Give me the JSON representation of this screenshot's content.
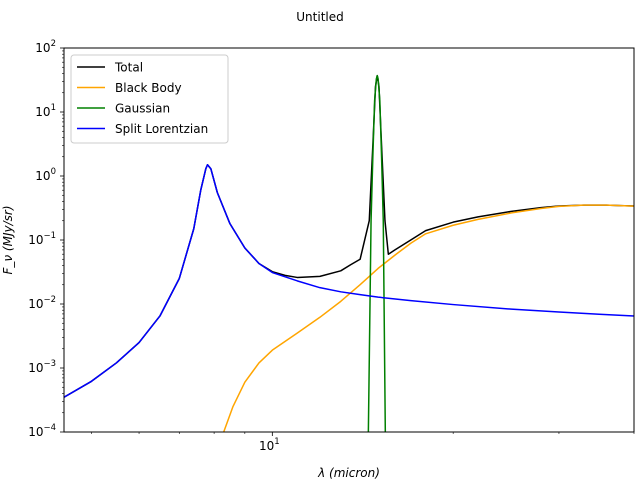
{
  "chart_data": {
    "type": "line",
    "title": "Untitled",
    "xlabel": "λ (micron)",
    "ylabel": "F_ν (MJy/sr)",
    "xscale": "log",
    "yscale": "log",
    "xlim": [
      4.5,
      40
    ],
    "ylim": [
      0.0001,
      100
    ],
    "x_ticks": [
      {
        "value": 10,
        "base": "10",
        "exp": "1"
      }
    ],
    "y_ticks": [
      {
        "value": 0.0001,
        "base": "10",
        "exp": "−4"
      },
      {
        "value": 0.001,
        "base": "10",
        "exp": "−3"
      },
      {
        "value": 0.01,
        "base": "10",
        "exp": "−2"
      },
      {
        "value": 0.1,
        "base": "10",
        "exp": "−1"
      },
      {
        "value": 1,
        "base": "10",
        "exp": "0"
      },
      {
        "value": 10,
        "base": "10",
        "exp": "1"
      },
      {
        "value": 100,
        "base": "10",
        "exp": "2"
      }
    ],
    "grid": false,
    "legend_position": "top-left",
    "series": [
      {
        "name": "Total",
        "color": "#000000",
        "points": [
          [
            4.5,
            0.00035
          ],
          [
            5,
            0.00062
          ],
          [
            5.5,
            0.0012
          ],
          [
            6,
            0.0025
          ],
          [
            6.5,
            0.0065
          ],
          [
            7,
            0.025
          ],
          [
            7.4,
            0.15
          ],
          [
            7.6,
            0.6
          ],
          [
            7.75,
            1.3
          ],
          [
            7.8,
            1.5
          ],
          [
            7.9,
            1.3
          ],
          [
            8.1,
            0.55
          ],
          [
            8.5,
            0.18
          ],
          [
            9,
            0.075
          ],
          [
            9.5,
            0.043
          ],
          [
            10,
            0.032
          ],
          [
            10.5,
            0.028
          ],
          [
            11,
            0.026
          ],
          [
            12,
            0.027
          ],
          [
            13,
            0.033
          ],
          [
            13.5,
            0.041
          ],
          [
            14,
            0.05
          ],
          [
            14.5,
            0.2
          ],
          [
            14.7,
            3
          ],
          [
            14.85,
            25
          ],
          [
            14.95,
            37
          ],
          [
            15.05,
            25
          ],
          [
            15.2,
            3
          ],
          [
            15.4,
            0.2
          ],
          [
            15.6,
            0.06
          ],
          [
            16,
            0.07
          ],
          [
            17,
            0.1
          ],
          [
            18,
            0.14
          ],
          [
            20,
            0.19
          ],
          [
            22,
            0.23
          ],
          [
            25,
            0.28
          ],
          [
            28,
            0.32
          ],
          [
            30,
            0.34
          ],
          [
            33,
            0.35
          ],
          [
            36,
            0.35
          ],
          [
            38,
            0.345
          ],
          [
            40,
            0.34
          ]
        ]
      },
      {
        "name": "Black Body",
        "color": "#ffa500",
        "points": [
          [
            8.3,
            0.0001
          ],
          [
            8.6,
            0.00025
          ],
          [
            9,
            0.0006
          ],
          [
            9.5,
            0.0012
          ],
          [
            10,
            0.0019
          ],
          [
            11,
            0.0035
          ],
          [
            12,
            0.0062
          ],
          [
            13,
            0.011
          ],
          [
            14,
            0.02
          ],
          [
            15,
            0.036
          ],
          [
            16,
            0.058
          ],
          [
            17,
            0.089
          ],
          [
            18,
            0.125
          ],
          [
            20,
            0.17
          ],
          [
            22,
            0.21
          ],
          [
            25,
            0.265
          ],
          [
            28,
            0.31
          ],
          [
            30,
            0.335
          ],
          [
            33,
            0.35
          ],
          [
            36,
            0.35
          ],
          [
            38,
            0.345
          ],
          [
            40,
            0.338
          ]
        ]
      },
      {
        "name": "Gaussian",
        "color": "#008000",
        "points": [
          [
            14.45,
            0.0001
          ],
          [
            14.6,
            0.2
          ],
          [
            14.7,
            2
          ],
          [
            14.8,
            15
          ],
          [
            14.9,
            33
          ],
          [
            14.95,
            37
          ],
          [
            15.0,
            33
          ],
          [
            15.1,
            15
          ],
          [
            15.2,
            2
          ],
          [
            15.3,
            0.2
          ],
          [
            15.42,
            0.0001
          ]
        ]
      },
      {
        "name": "Split Lorentzian",
        "color": "#0000ff",
        "points": [
          [
            4.5,
            0.00035
          ],
          [
            5,
            0.00062
          ],
          [
            5.5,
            0.0012
          ],
          [
            6,
            0.0025
          ],
          [
            6.5,
            0.0065
          ],
          [
            7,
            0.025
          ],
          [
            7.4,
            0.15
          ],
          [
            7.6,
            0.6
          ],
          [
            7.75,
            1.3
          ],
          [
            7.8,
            1.5
          ],
          [
            7.9,
            1.3
          ],
          [
            8.1,
            0.55
          ],
          [
            8.5,
            0.18
          ],
          [
            9,
            0.075
          ],
          [
            9.5,
            0.043
          ],
          [
            10,
            0.031
          ],
          [
            11,
            0.023
          ],
          [
            12,
            0.018
          ],
          [
            13,
            0.0155
          ],
          [
            14,
            0.014
          ],
          [
            15,
            0.0128
          ],
          [
            17,
            0.0113
          ],
          [
            20,
            0.0098
          ],
          [
            25,
            0.0083
          ],
          [
            30,
            0.0075
          ],
          [
            35,
            0.0069
          ],
          [
            40,
            0.0065
          ]
        ]
      }
    ]
  }
}
